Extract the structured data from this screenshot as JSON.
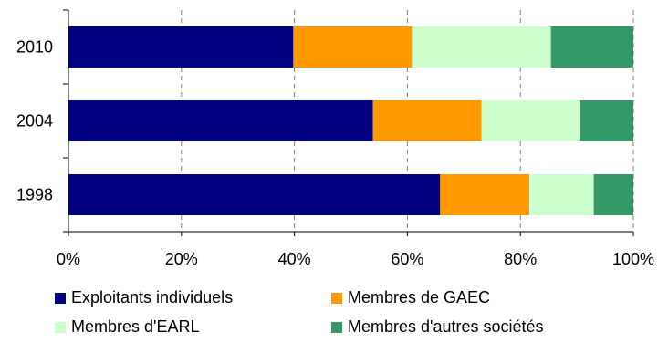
{
  "chart_data": {
    "type": "bar",
    "orientation": "horizontal",
    "stacked": "percent",
    "categories": [
      "2010",
      "2004",
      "1998"
    ],
    "series": [
      {
        "name": "Exploitants individuels",
        "color": "#000080",
        "values": [
          39.8,
          53.9,
          65.8
        ]
      },
      {
        "name": "Membres de GAEC",
        "color": "#FF9900",
        "values": [
          21.0,
          19.2,
          15.8
        ]
      },
      {
        "name": "Membres d'EARL",
        "color": "#CCFFCC",
        "values": [
          24.6,
          17.4,
          11.4
        ]
      },
      {
        "name": "Membres d'autres sociétés",
        "color": "#339966",
        "values": [
          14.6,
          9.5,
          7.0
        ]
      }
    ],
    "xlim": [
      0,
      100
    ],
    "x_ticks": [
      "0%",
      "20%",
      "40%",
      "60%",
      "80%",
      "100%"
    ],
    "grid": "vertical dashed",
    "legend_position": "bottom"
  }
}
